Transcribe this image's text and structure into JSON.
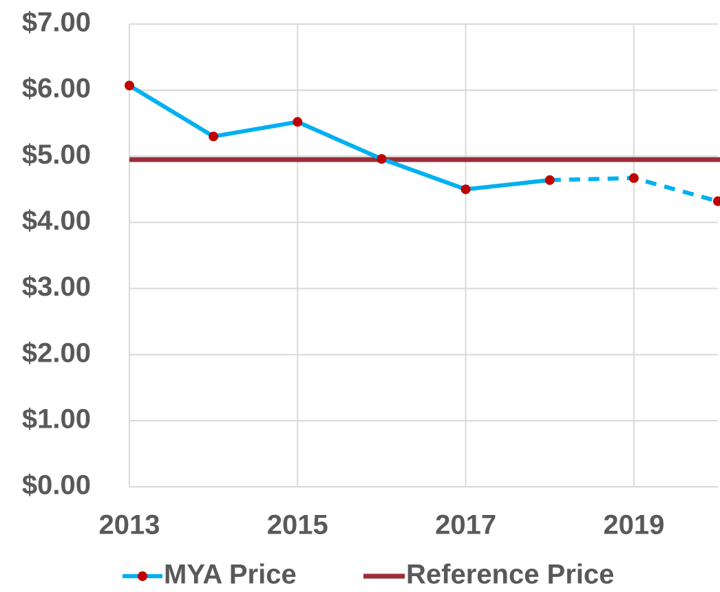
{
  "chart_data": {
    "type": "line",
    "x": [
      2013,
      2014,
      2015,
      2016,
      2017,
      2018,
      2019,
      2020
    ],
    "series": [
      {
        "name": "MYA Price",
        "color": "#00b0f0",
        "marker_color": "#c00000",
        "values": [
          6.07,
          5.3,
          5.52,
          4.96,
          4.5,
          4.64,
          4.67,
          4.32
        ],
        "dashed_from": 2018
      }
    ],
    "reference": {
      "name": "Reference Price",
      "color": "#9b2d3a",
      "value": 4.95
    },
    "xlim": [
      2013,
      2020
    ],
    "xticks": [
      2013,
      2015,
      2017,
      2019
    ],
    "ylim": [
      0,
      7
    ],
    "yticks": [
      {
        "value": 0,
        "label": "$0.00"
      },
      {
        "value": 1,
        "label": "$1.00"
      },
      {
        "value": 2,
        "label": "$2.00"
      },
      {
        "value": 3,
        "label": "$3.00"
      },
      {
        "value": 4,
        "label": "$4.00"
      },
      {
        "value": 5,
        "label": "$5.00"
      },
      {
        "value": 6,
        "label": "$6.00"
      },
      {
        "value": 7,
        "label": "$7.00"
      }
    ],
    "grid": true,
    "legend": "bottom"
  }
}
